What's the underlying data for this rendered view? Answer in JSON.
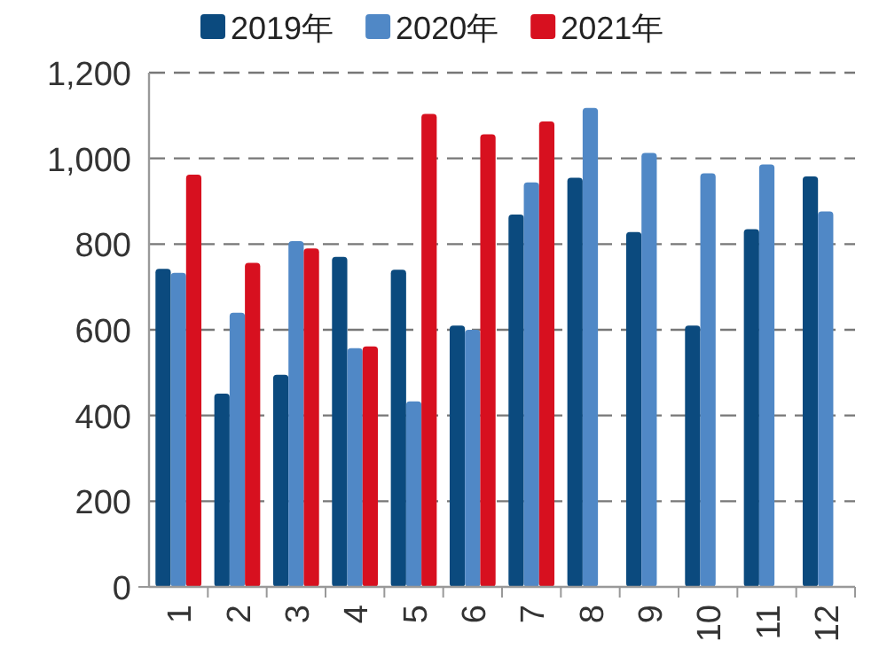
{
  "chart_data": {
    "type": "bar",
    "categories": [
      "1",
      "2",
      "3",
      "4",
      "5",
      "6",
      "7",
      "8",
      "9",
      "10",
      "11",
      "12"
    ],
    "series": [
      {
        "name": "2019年",
        "color": "#0b4a7e",
        "values": [
          742,
          451,
          495,
          770,
          740,
          610,
          869,
          955,
          828,
          610,
          835,
          958
        ]
      },
      {
        "name": "2020年",
        "color": "#5088c6",
        "values": [
          733,
          640,
          807,
          557,
          433,
          600,
          944,
          1118,
          1013,
          965,
          986,
          876
        ]
      },
      {
        "name": "2021年",
        "color": "#d7101f",
        "values": [
          962,
          756,
          790,
          561,
          1104,
          1056,
          1086,
          null,
          null,
          null,
          null,
          null
        ]
      }
    ],
    "ylim": [
      0,
      1200
    ],
    "yticks": [
      0,
      200,
      400,
      600,
      800,
      {
        "value": 1000,
        "label": "1,000"
      },
      {
        "value": 1200,
        "label": "1,200"
      }
    ],
    "grid": "y",
    "legend": "top"
  }
}
